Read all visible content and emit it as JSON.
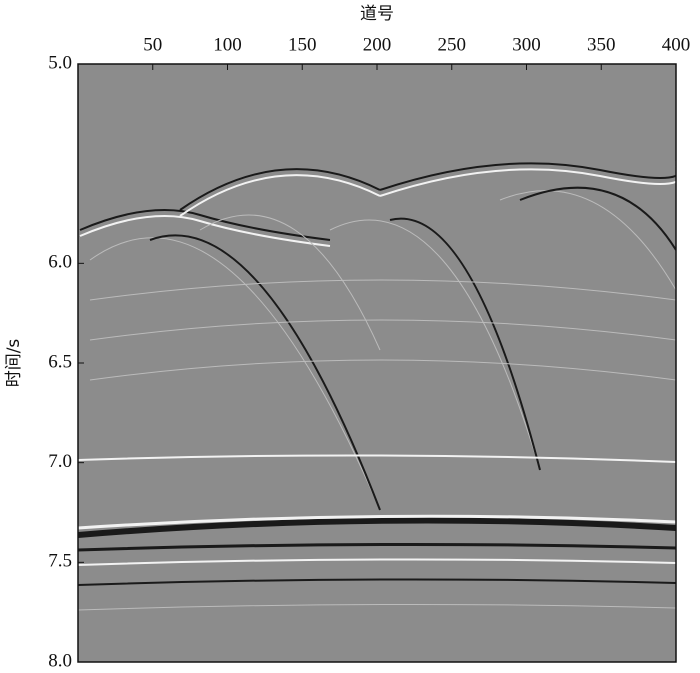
{
  "chart_data": {
    "type": "seismic",
    "xlabel": "道号",
    "ylabel": "时间/s",
    "xlim": [
      0,
      400
    ],
    "xticks": [
      50,
      100,
      150,
      200,
      250,
      300,
      350,
      400
    ],
    "ylim": [
      5,
      8
    ],
    "yticks": [
      {
        "value": 5,
        "label": "5.0"
      },
      {
        "value": 6,
        "label": "6.0"
      },
      6.5,
      {
        "value": 7,
        "label": "7.0"
      },
      7.5,
      {
        "value": 8,
        "label": "8.0"
      }
    ],
    "y_inverted": true,
    "color": "#8c8c8c"
  }
}
